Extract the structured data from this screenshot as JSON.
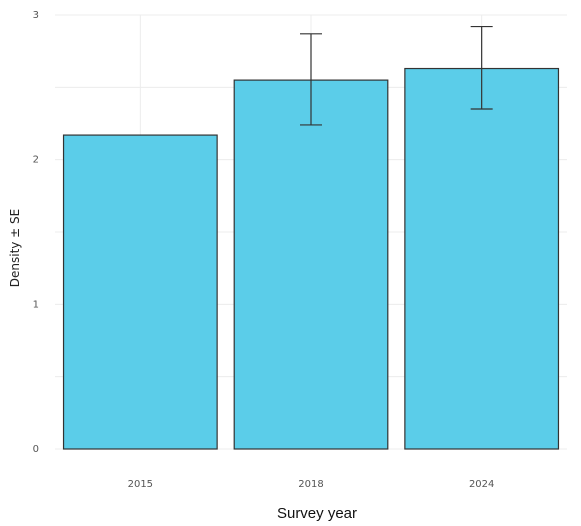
{
  "chart_data": {
    "type": "bar",
    "categories": [
      "2015",
      "2018",
      "2024"
    ],
    "values": [
      2.17,
      2.55,
      2.63
    ],
    "error_bars": [
      {
        "low": null,
        "high": null
      },
      {
        "low": 2.24,
        "high": 2.87
      },
      {
        "low": 2.35,
        "high": 2.92
      }
    ],
    "xlabel": "Survey year",
    "ylabel": "Density ± SE",
    "ylim": [
      0,
      3
    ],
    "y_ticks": [
      "0",
      "1",
      "2",
      "3"
    ],
    "grid": true,
    "bar_color": "#5bcde9",
    "edge_color": "#333333"
  }
}
